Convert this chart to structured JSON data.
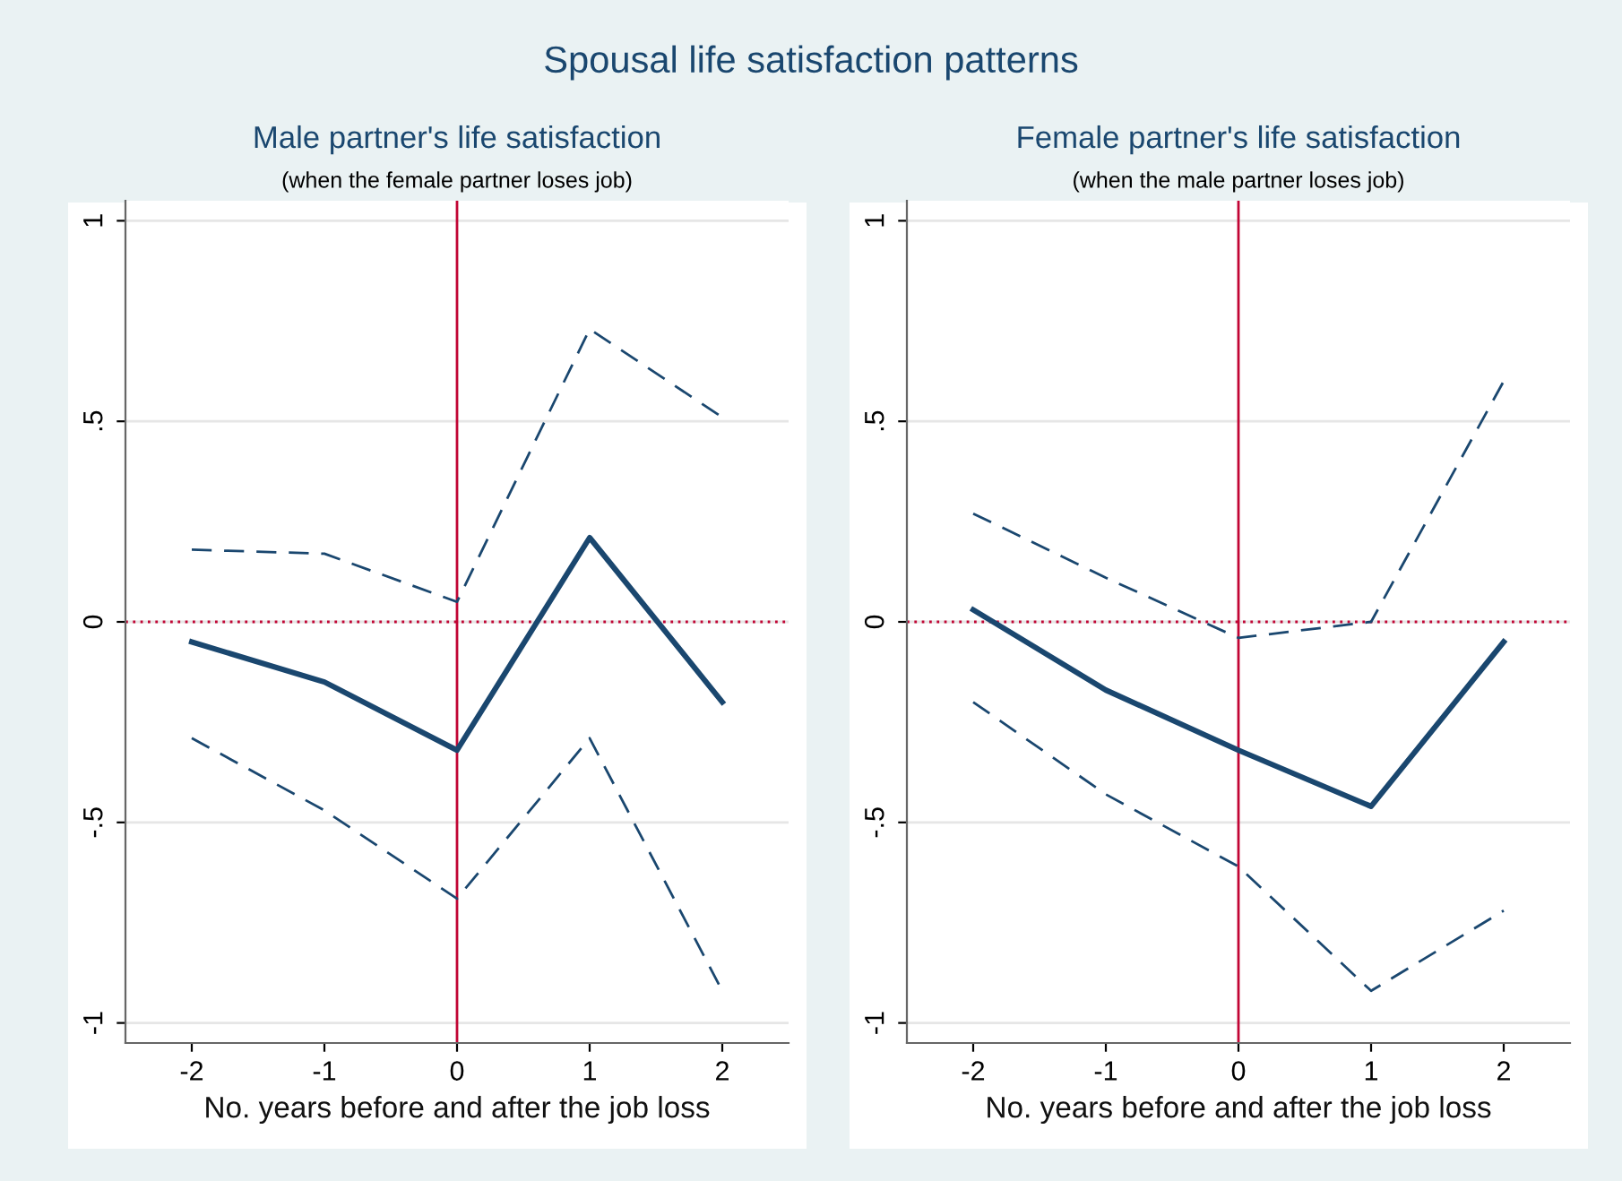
{
  "chart_data": [
    {
      "type": "line",
      "title": "Male partner's life satisfaction",
      "subtitle": "(when the female partner loses job)",
      "xlabel": "No. years before and after the job loss",
      "annotations": [
        "Spousal life satisfaction patterns"
      ],
      "x": [
        -2,
        -1,
        0,
        1,
        2
      ],
      "series": [
        {
          "color": "#1a476f",
          "line_style": "solid",
          "values": [
            -0.05,
            -0.15,
            -0.32,
            0.21,
            -0.2
          ]
        },
        {
          "color": "#1a476f",
          "line_style": "dashed",
          "values": [
            0.18,
            0.17,
            0.05,
            0.73,
            0.51
          ]
        },
        {
          "color": "#1a476f",
          "line_style": "dashed",
          "values": [
            -0.29,
            -0.47,
            -0.69,
            -0.29,
            -0.92
          ]
        }
      ],
      "xlim": [
        -2.5,
        2.5
      ],
      "ylim": [
        -1.05,
        1.05
      ],
      "xticks": [
        -2,
        -1,
        0,
        1,
        2
      ],
      "yticks": [
        {
          "value": -1,
          "label": "-1"
        },
        {
          "value": -0.5,
          "label": "-.5"
        },
        {
          "value": 0,
          "label": "0"
        },
        {
          "value": 0.5,
          "label": ".5"
        },
        {
          "value": 1,
          "label": "1"
        }
      ],
      "grid": "y",
      "marker": "none",
      "ref_lines": [
        {
          "axis": "x",
          "value": 0,
          "color": "#c10534",
          "line_style": "solid"
        },
        {
          "axis": "y",
          "value": 0,
          "color": "#c10534",
          "line_style": "dotted"
        }
      ]
    },
    {
      "type": "line",
      "title": "Female partner's life satisfaction",
      "subtitle": "(when the male partner loses job)",
      "xlabel": "No. years before and after the job loss",
      "x": [
        -2,
        -1,
        0,
        1,
        2
      ],
      "series": [
        {
          "color": "#1a476f",
          "line_style": "solid",
          "values": [
            0.03,
            -0.17,
            -0.32,
            -0.46,
            -0.05
          ]
        },
        {
          "color": "#1a476f",
          "line_style": "dashed",
          "values": [
            0.27,
            0.11,
            -0.04,
            0.0,
            0.6
          ]
        },
        {
          "color": "#1a476f",
          "line_style": "dashed",
          "values": [
            -0.2,
            -0.43,
            -0.61,
            -0.92,
            -0.72
          ]
        }
      ],
      "xlim": [
        -2.5,
        2.5
      ],
      "ylim": [
        -1.05,
        1.05
      ],
      "xticks": [
        -2,
        -1,
        0,
        1,
        2
      ],
      "yticks": [
        {
          "value": -1,
          "label": "-1"
        },
        {
          "value": -0.5,
          "label": "-.5"
        },
        {
          "value": 0,
          "label": "0"
        },
        {
          "value": 0.5,
          "label": ".5"
        },
        {
          "value": 1,
          "label": "1"
        }
      ],
      "grid": "y",
      "marker": "none",
      "ref_lines": [
        {
          "axis": "x",
          "value": 0,
          "color": "#c10534",
          "line_style": "solid"
        },
        {
          "axis": "y",
          "value": 0,
          "color": "#c10534",
          "line_style": "dotted"
        }
      ]
    }
  ]
}
